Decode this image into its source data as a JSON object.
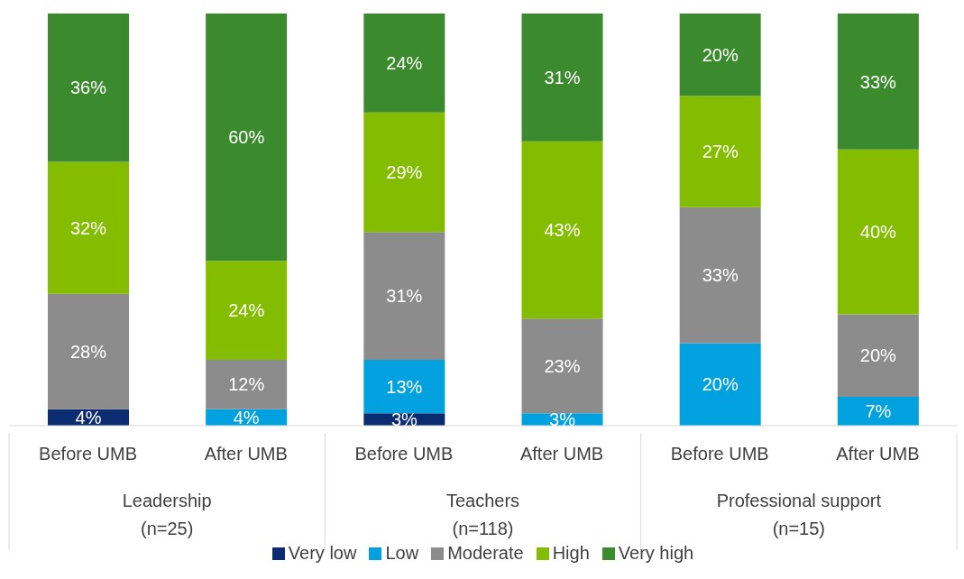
{
  "chart_data": {
    "type": "bar",
    "stacked": true,
    "categories": [
      "Before UMB",
      "After UMB",
      "Before UMB",
      "After UMB",
      "Before UMB",
      "After UMB"
    ],
    "annotations": [
      "Leadership\n(n=25)",
      "Teachers\n(n=118)",
      "Professional support\n(n=15)"
    ],
    "series": [
      {
        "name": "Very low",
        "color": "#0c2c72",
        "values": [
          4,
          null,
          3,
          null,
          null,
          null
        ],
        "value_labels": [
          "4%",
          null,
          "3%",
          null,
          null,
          null
        ]
      },
      {
        "name": "Low",
        "color": "#00a1de",
        "values": [
          null,
          4,
          13,
          3,
          20,
          7
        ],
        "value_labels": [
          null,
          "4%",
          "13%",
          "3%",
          "20%",
          "7%"
        ]
      },
      {
        "name": "Moderate",
        "color": "#8c8c8c",
        "values": [
          28,
          12,
          31,
          23,
          33,
          20
        ],
        "value_labels": [
          "28%",
          "12%",
          "31%",
          "23%",
          "33%",
          "20%"
        ]
      },
      {
        "name": "High",
        "color": "#84bd00",
        "values": [
          32,
          24,
          29,
          43,
          27,
          40
        ],
        "value_labels": [
          "32%",
          "24%",
          "29%",
          "43%",
          "27%",
          "40%"
        ]
      },
      {
        "name": "Very high",
        "color": "#3c8a2e",
        "values": [
          36,
          60,
          24,
          31,
          20,
          33
        ],
        "value_labels": [
          "36%",
          "60%",
          "24%",
          "31%",
          "20%",
          "33%"
        ]
      }
    ],
    "tick_labels": "x",
    "legend": "bottom"
  }
}
